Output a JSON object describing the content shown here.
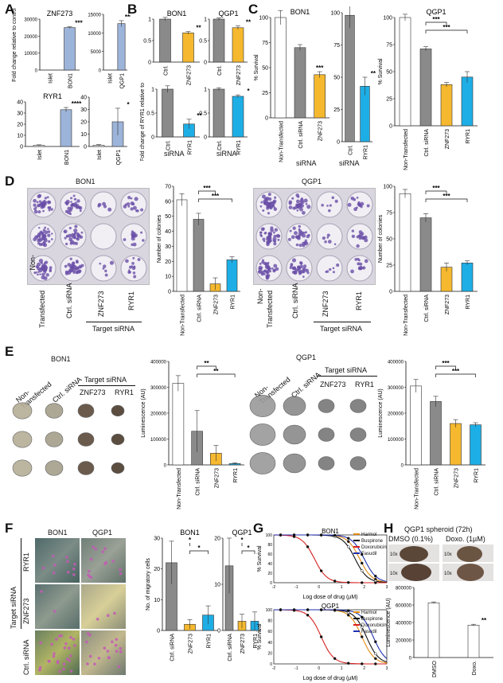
{
  "panels": {
    "A": "A",
    "B": "B",
    "C": "C",
    "D": "D",
    "E": "E",
    "F": "F",
    "G": "G",
    "H": "H"
  },
  "labels": {
    "bon1": "BON1",
    "qgp1": "QGP1",
    "znf273": "ZNF273",
    "ryr1": "RYR1",
    "islet": "Islet",
    "ctrl": "Ctrl.",
    "ctrl_sirna": "Ctrl. siRNA",
    "sirna": "siRNA",
    "target_sirna": "Target siRNA",
    "target": "Target",
    "non_transfected": "Non-Transfected",
    "non": "Non-",
    "transfected": "Transfected",
    "dmso": "DMSO",
    "doxo": "Doxo."
  },
  "axes": {
    "fold_control": "Fold change relative to control",
    "fold_ryr1": "Fold change of RYR1 relative to control",
    "survival": "% Survival",
    "colonies": "Number of colonies",
    "luminescence": "Luminescence (AU)",
    "migratory": "No. of migratory cells",
    "log_dose": "Log dose of drug (µM)"
  },
  "legend_g": [
    "Harmol",
    "Buspirone",
    "Doxorubicin",
    "Fasudil"
  ],
  "h_titles": {
    "spheroid": "QGP1 spheroid (72h)",
    "dmso": "DMSO (0.1%)",
    "doxo": "Doxo. (1µM)",
    "mag": "10x"
  },
  "colors": {
    "grey": "#8a8a8a",
    "orange": "#f5b82e",
    "blue": "#1eaee6",
    "lightblue": "#9db4da",
    "white": "#ffffff",
    "red": "#d62020",
    "blue_line": "#2030b0"
  },
  "chart_data": [
    {
      "id": "A1",
      "type": "bar",
      "title": "ZNF273",
      "categories": [
        "Islet",
        "BON1"
      ],
      "values": [
        0,
        25000
      ],
      "errors": [
        0,
        500
      ],
      "ylim": [
        0,
        30000
      ],
      "yticks": [
        0,
        10000,
        20000,
        30000
      ],
      "ylabel": "Fold change relative to control",
      "sig": [
        "",
        "****"
      ]
    },
    {
      "id": "A2",
      "type": "bar",
      "title": "",
      "categories": [
        "Islet",
        "QGP1"
      ],
      "values": [
        0,
        12500
      ],
      "errors": [
        0,
        800
      ],
      "ylim": [
        0,
        15000
      ],
      "yticks": [
        0,
        5000,
        10000,
        15000
      ],
      "sig": [
        "",
        "****"
      ]
    },
    {
      "id": "A3",
      "type": "bar",
      "title": "RYR1",
      "categories": [
        "Islet",
        "BON1"
      ],
      "values": [
        1,
        33
      ],
      "errors": [
        0.5,
        2
      ],
      "ylim": [
        0,
        40
      ],
      "yticks": [
        0,
        10,
        20,
        30,
        40
      ],
      "sig": [
        "",
        "****"
      ]
    },
    {
      "id": "A4",
      "type": "bar",
      "title": "",
      "categories": [
        "Islet",
        "QGP1"
      ],
      "values": [
        1,
        20
      ],
      "errors": [
        0.5,
        11
      ],
      "ylim": [
        0,
        40
      ],
      "yticks": [
        0,
        10,
        20,
        30,
        40
      ],
      "sig": [
        "",
        "*"
      ]
    },
    {
      "id": "B1",
      "type": "bar",
      "title": "BON1",
      "categories": [
        "Ctrl.",
        "ZNF273"
      ],
      "values": [
        1,
        0.68
      ],
      "errors": [
        0.04,
        0.03
      ],
      "ylim": [
        0,
        1
      ],
      "yticks": [
        0,
        0.5,
        1
      ],
      "sig": [
        "",
        "**"
      ]
    },
    {
      "id": "B2",
      "type": "bar",
      "title": "QGP1",
      "categories": [
        "Ctrl.",
        "ZNF273"
      ],
      "values": [
        1,
        0.8
      ],
      "errors": [
        0.03,
        0.04
      ],
      "ylim": [
        0,
        1
      ],
      "yticks": [
        0,
        0.5,
        1
      ],
      "sig": [
        "",
        "**"
      ]
    },
    {
      "id": "B3",
      "type": "bar",
      "title": "",
      "categories": [
        "Ctrl.",
        "RYR1"
      ],
      "values": [
        1,
        0.27
      ],
      "errors": [
        0.07,
        0.1
      ],
      "ylim": [
        0,
        1
      ],
      "yticks": [
        0,
        0.5,
        1
      ],
      "ylabel": "Fold change of RYR1 relative to control",
      "sig": [
        "",
        "**"
      ]
    },
    {
      "id": "B4",
      "type": "bar",
      "title": "",
      "categories": [
        "Ctrl.",
        "RYR1"
      ],
      "values": [
        1,
        0.85
      ],
      "errors": [
        0.03,
        0.03
      ],
      "ylim": [
        0,
        1
      ],
      "yticks": [
        0,
        0.5,
        1
      ],
      "sig": [
        "",
        "*"
      ]
    },
    {
      "id": "C1",
      "type": "bar",
      "title": "BON1",
      "categories": [
        "Non-Transfected",
        "Ctrl. siRNA",
        "ZNF273"
      ],
      "values": [
        100,
        70,
        43
      ],
      "errors": [
        7,
        3,
        3
      ],
      "ylim": [
        0,
        100
      ],
      "yticks": [
        0,
        25,
        50,
        75,
        100
      ],
      "ylabel": "% Survival",
      "sig": [
        "",
        "",
        "***"
      ]
    },
    {
      "id": "C2",
      "type": "bar",
      "title": "",
      "categories": [
        "Ctrl.",
        "RYR1"
      ],
      "values": [
        98,
        43
      ],
      "errors": [
        10,
        7
      ],
      "ylim": [
        0,
        100
      ],
      "yticks": [
        0,
        25,
        50,
        75,
        100
      ],
      "sig": [
        "",
        "***"
      ]
    },
    {
      "id": "C3",
      "type": "bar",
      "title": "QGP1",
      "categories": [
        "Non-Transfected",
        "Ctrl. siRNA",
        "ZNF273",
        "RYR1"
      ],
      "values": [
        100,
        71,
        38,
        45
      ],
      "errors": [
        3,
        2,
        2,
        5
      ],
      "ylim": [
        0,
        100
      ],
      "yticks": [
        0,
        25,
        50,
        75,
        100
      ],
      "ylabel": "% Survival",
      "sig": [
        "",
        "",
        "***",
        "***"
      ]
    },
    {
      "id": "D1",
      "type": "bar",
      "title": "",
      "categories": [
        "Non-Transfected",
        "Ctrl. siRNA",
        "ZNF273",
        "RYR1"
      ],
      "values": [
        61,
        48,
        5,
        21
      ],
      "errors": [
        4,
        4,
        4,
        2
      ],
      "ylim": [
        0,
        70
      ],
      "yticks": [
        0,
        10,
        20,
        30,
        40,
        50,
        60,
        70
      ],
      "ylabel": "Number of colonies",
      "sig": [
        "",
        "",
        "***",
        "***"
      ]
    },
    {
      "id": "D2",
      "type": "bar",
      "title": "",
      "categories": [
        "Non-Transfected",
        "Ctrl. siRNA",
        "ZNF273",
        "RYR1"
      ],
      "values": [
        93,
        70,
        23,
        27
      ],
      "errors": [
        4,
        4,
        4,
        2
      ],
      "ylim": [
        0,
        100
      ],
      "yticks": [
        0,
        25,
        50,
        75,
        100
      ],
      "ylabel": "Number of colonies",
      "sig": [
        "",
        "",
        "***",
        "***"
      ]
    },
    {
      "id": "E1",
      "type": "bar",
      "title": "",
      "categories": [
        "Non-Transfected",
        "Ctrl. siRNA",
        "ZNF273",
        "RYR1"
      ],
      "values": [
        315000,
        130000,
        45000,
        5000
      ],
      "errors": [
        30000,
        80000,
        30000,
        3000
      ],
      "ylim": [
        0,
        400000
      ],
      "yticks": [
        0,
        100000,
        200000,
        300000,
        400000
      ],
      "ylabel": "Luminescence (AU)",
      "sig": [
        "",
        "",
        "**",
        "**"
      ]
    },
    {
      "id": "E2",
      "type": "bar",
      "title": "",
      "categories": [
        "Non-Transfected",
        "Ctrl. siRNA",
        "ZNF273",
        "RYR1"
      ],
      "values": [
        305000,
        245000,
        160000,
        155000
      ],
      "errors": [
        25000,
        20000,
        15000,
        8000
      ],
      "ylim": [
        0,
        400000
      ],
      "yticks": [
        0,
        100000,
        200000,
        300000,
        400000
      ],
      "ylabel": "Luminescence (AU)",
      "sig": [
        "",
        "",
        "***",
        "***"
      ]
    },
    {
      "id": "F1",
      "type": "bar",
      "title": "BON1",
      "categories": [
        "Ctrl. siRNA",
        "ZNF273",
        "RYR1"
      ],
      "values": [
        22,
        2,
        5
      ],
      "errors": [
        7,
        1.5,
        3
      ],
      "ylim": [
        0,
        30
      ],
      "yticks": [
        0,
        10,
        20,
        30
      ],
      "ylabel": "No. of migratory cells",
      "sig": [
        "",
        "*",
        "*"
      ]
    },
    {
      "id": "F2",
      "type": "bar",
      "title": "QGP1",
      "categories": [
        "Ctrl. siRNA",
        "ZNF273",
        "RYR1"
      ],
      "values": [
        14,
        2,
        2
      ],
      "errors": [
        6,
        1.5,
        2
      ],
      "ylim": [
        0,
        20
      ],
      "yticks": [
        0,
        10,
        20
      ],
      "sig": [
        "",
        "*",
        "*"
      ]
    },
    {
      "id": "H1",
      "type": "bar",
      "title": "",
      "categories": [
        "DMSO",
        "Doxo."
      ],
      "values": [
        625000,
        370000
      ],
      "errors": [
        10000,
        10000
      ],
      "ylim": [
        0,
        800000
      ],
      "yticks": [
        0,
        200000,
        400000,
        600000,
        800000
      ],
      "ylabel": "Luminescence (AU)",
      "sig": [
        "",
        "**"
      ]
    },
    {
      "id": "G1",
      "type": "line",
      "title": "BON1",
      "xlabel": "Log dose of drug (µM)",
      "ylabel": "% Survival",
      "xlim": [
        -2,
        3
      ],
      "ylim": [
        0,
        100
      ],
      "xticks": [
        -2,
        -1,
        0,
        1,
        2,
        3
      ],
      "yticks": [
        0,
        20,
        40,
        60,
        80,
        100
      ],
      "series": [
        {
          "name": "Harmol",
          "ic50": 1.8
        },
        {
          "name": "Buspirone",
          "ic50": 1.6
        },
        {
          "name": "Doxorubicin",
          "ic50": -0.2
        },
        {
          "name": "Fasudil",
          "ic50": 2.0
        }
      ]
    },
    {
      "id": "G2",
      "type": "line",
      "title": "QGP1",
      "xlabel": "Log dose of drug (µM)",
      "ylabel": "% Survival",
      "xlim": [
        -2,
        3
      ],
      "ylim": [
        0,
        100
      ],
      "xticks": [
        -2,
        -1,
        0,
        1,
        2,
        3
      ],
      "yticks": [
        0,
        20,
        40,
        60,
        80,
        100
      ],
      "series": [
        {
          "name": "Harmol",
          "ic50": 1.9
        },
        {
          "name": "Buspirone",
          "ic50": 2.1
        },
        {
          "name": "Doxorubicin",
          "ic50": 0.1
        },
        {
          "name": "Fasudil",
          "ic50": 2.4
        }
      ]
    }
  ]
}
